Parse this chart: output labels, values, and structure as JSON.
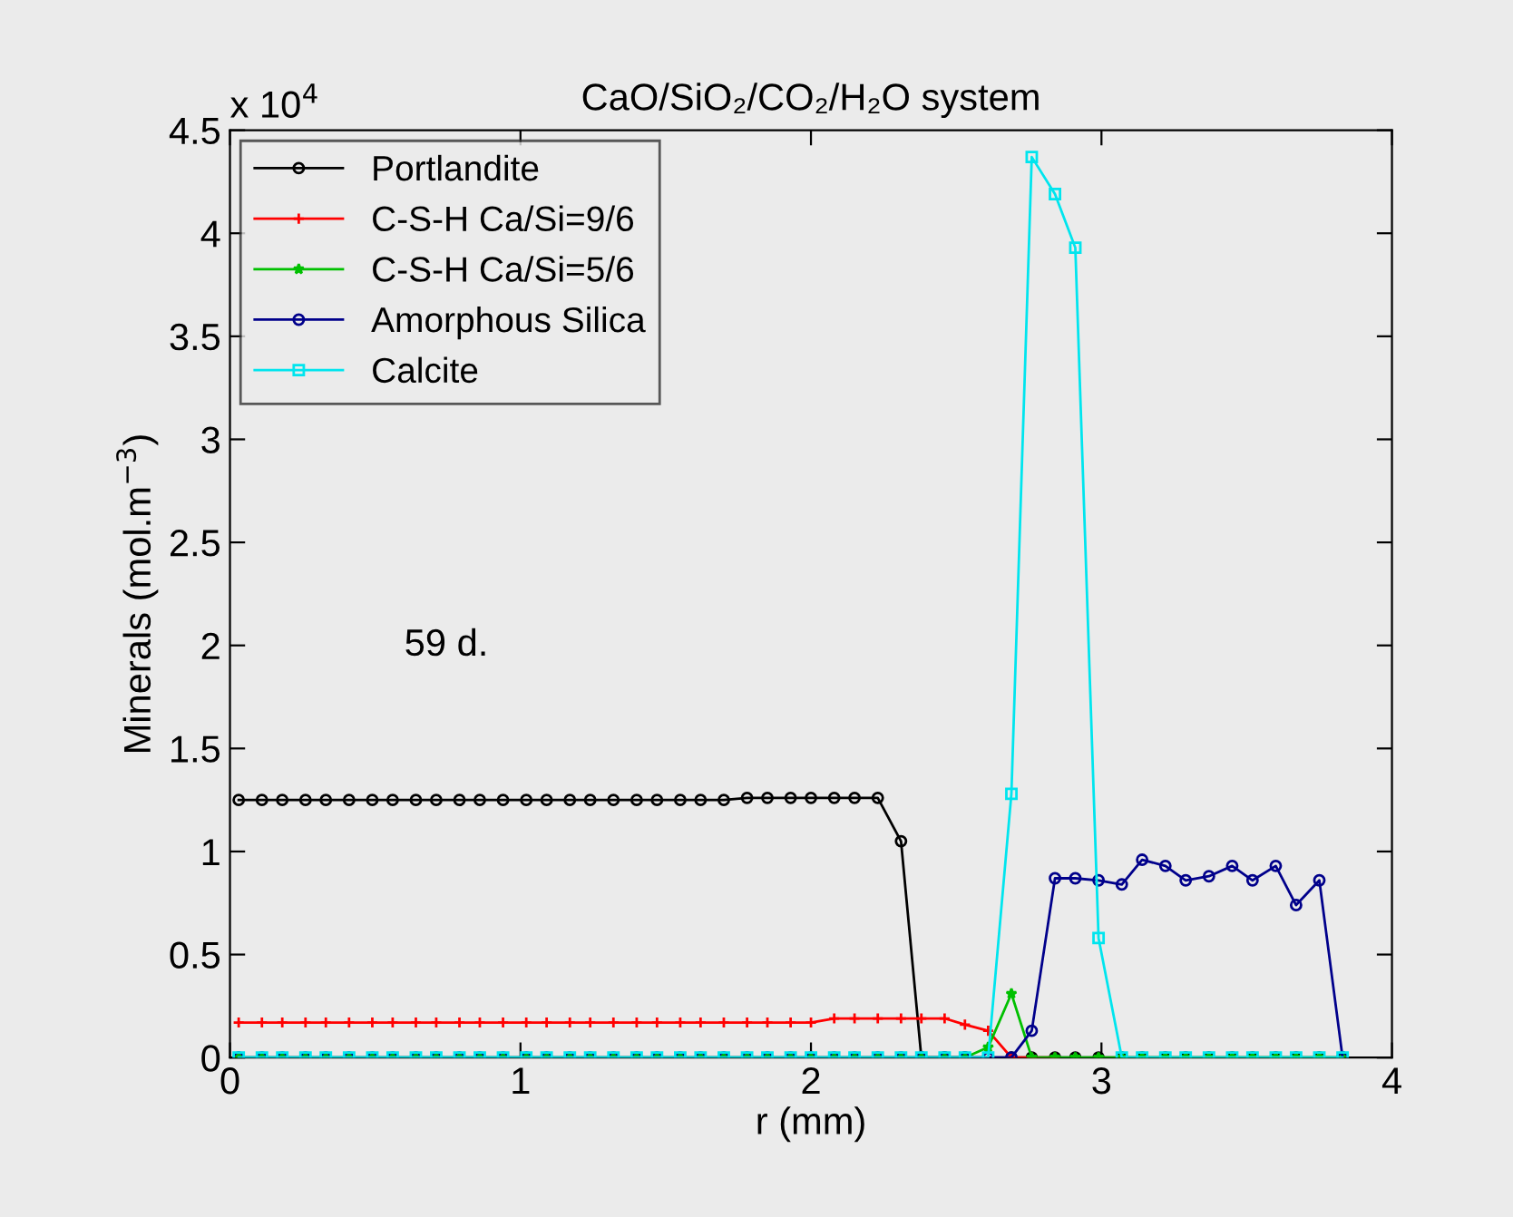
{
  "chart_data": {
    "type": "line",
    "title": "CaO/SiO₂/CO₂/H₂O system",
    "xlabel": "r (mm)",
    "ylabel": "Minerals (mol.m$^{−3}$)",
    "annotations": [
      "x 10$^{4}$",
      "59 d."
    ],
    "x": [
      0.03,
      0.11,
      0.18,
      0.26,
      0.33,
      0.41,
      0.49,
      0.56,
      0.64,
      0.71,
      0.79,
      0.86,
      0.94,
      1.02,
      1.09,
      1.17,
      1.24,
      1.32,
      1.4,
      1.47,
      1.55,
      1.62,
      1.7,
      1.78,
      1.85,
      1.93,
      2.0,
      2.08,
      2.15,
      2.23,
      2.31,
      2.38,
      2.46,
      2.53,
      2.61,
      2.69,
      2.76,
      2.84,
      2.91,
      2.99,
      3.07,
      3.14,
      3.22,
      3.29,
      3.37,
      3.45,
      3.52,
      3.6,
      3.67,
      3.75,
      3.83
    ],
    "series": [
      {
        "name": "Portlandite",
        "color": "#000000",
        "marker": "circle",
        "values": [
          1.25,
          1.25,
          1.25,
          1.25,
          1.25,
          1.25,
          1.25,
          1.25,
          1.25,
          1.25,
          1.25,
          1.25,
          1.25,
          1.25,
          1.25,
          1.25,
          1.25,
          1.25,
          1.25,
          1.25,
          1.25,
          1.25,
          1.25,
          1.26,
          1.26,
          1.26,
          1.26,
          1.26,
          1.26,
          1.26,
          1.05,
          0,
          0,
          0,
          0,
          0,
          0,
          0,
          0,
          0,
          0,
          0,
          0,
          0,
          0,
          0,
          0,
          0,
          0,
          0,
          0
        ]
      },
      {
        "name": "C-S-H Ca/Si=9/6",
        "color": "#ff0000",
        "marker": "cross",
        "values": [
          0.17,
          0.17,
          0.17,
          0.17,
          0.17,
          0.17,
          0.17,
          0.17,
          0.17,
          0.17,
          0.17,
          0.17,
          0.17,
          0.17,
          0.17,
          0.17,
          0.17,
          0.17,
          0.17,
          0.17,
          0.17,
          0.17,
          0.17,
          0.17,
          0.17,
          0.17,
          0.17,
          0.19,
          0.19,
          0.19,
          0.19,
          0.19,
          0.19,
          0.16,
          0.13,
          0,
          0,
          0,
          null,
          null,
          null,
          null,
          null,
          null,
          null,
          null,
          null,
          null,
          null,
          null,
          null
        ]
      },
      {
        "name": "C-S-H Ca/Si=5/6",
        "color": "#00c000",
        "marker": "star",
        "values": [
          0,
          0,
          0,
          0,
          0,
          0,
          0,
          0,
          0,
          0,
          0,
          0,
          0,
          0,
          0,
          0,
          0,
          0,
          0,
          0,
          0,
          0,
          0,
          0,
          0,
          0,
          0,
          0,
          0,
          0,
          0,
          0,
          0,
          0,
          0.05,
          0.31,
          0,
          0,
          0,
          0,
          0,
          0,
          0,
          0,
          0,
          0,
          0,
          0,
          0,
          0,
          0
        ]
      },
      {
        "name": "Amorphous Silica",
        "color": "#00008b",
        "marker": "circle",
        "values": [
          0,
          0,
          0,
          0,
          0,
          0,
          0,
          0,
          0,
          0,
          0,
          0,
          0,
          0,
          0,
          0,
          0,
          0,
          0,
          0,
          0,
          0,
          0,
          0,
          0,
          0,
          0,
          0,
          0,
          0,
          0,
          0,
          0,
          0,
          0,
          0,
          0.13,
          0.87,
          0.87,
          0.86,
          0.84,
          0.96,
          0.93,
          0.86,
          0.88,
          0.93,
          0.86,
          0.93,
          0.74,
          0.86,
          0
        ]
      },
      {
        "name": "Calcite",
        "color": "#00e5ee",
        "marker": "square",
        "values": [
          0,
          0,
          0,
          0,
          0,
          0,
          0,
          0,
          0,
          0,
          0,
          0,
          0,
          0,
          0,
          0,
          0,
          0,
          0,
          0,
          0,
          0,
          0,
          0,
          0,
          0,
          0,
          0,
          0,
          0,
          0,
          0,
          0,
          0,
          0,
          1.28,
          4.37,
          4.19,
          3.93,
          0.58,
          0,
          0,
          0,
          0,
          0,
          0,
          0,
          0,
          0,
          0,
          0
        ]
      }
    ],
    "xlim": [
      0,
      4
    ],
    "xticks": [
      0,
      1,
      2,
      3,
      4
    ],
    "ylim": [
      0,
      4.5
    ],
    "yticks": [
      0,
      0.5,
      1,
      1.5,
      2,
      2.5,
      3,
      3.5,
      4,
      4.5
    ],
    "grid": false,
    "legend": "top left",
    "line_style": "solid"
  }
}
